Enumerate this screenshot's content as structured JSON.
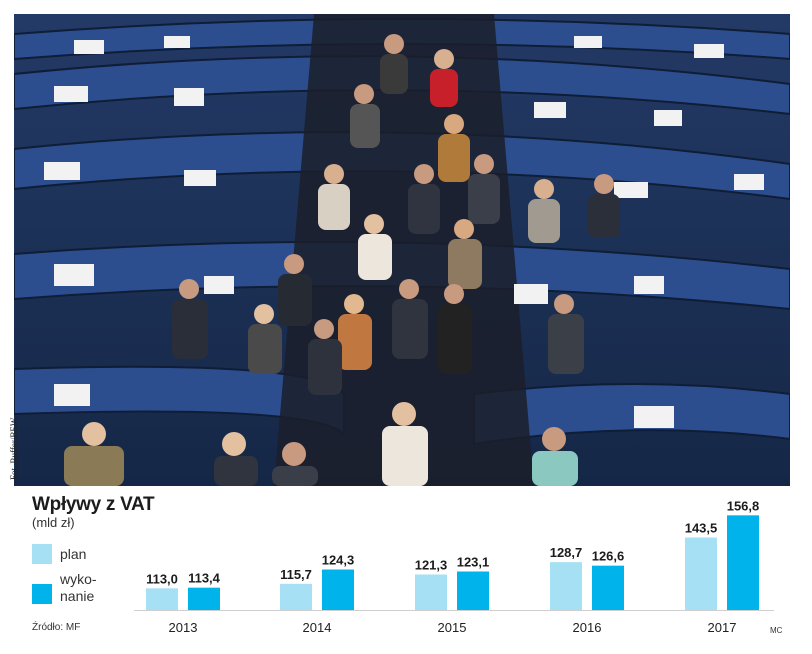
{
  "photo": {
    "credit": "Fot. Ruffer/BEW"
  },
  "chart_data": {
    "type": "bar",
    "title": "Wpływy z VAT",
    "unit": "(mld zł)",
    "categories": [
      "2013",
      "2014",
      "2015",
      "2016",
      "2017"
    ],
    "series": [
      {
        "name": "plan",
        "values": [
          113.0,
          115.7,
          121.3,
          128.7,
          143.5
        ],
        "color": "#a6e0f5"
      },
      {
        "name": "wykonanie",
        "values": [
          113.4,
          124.3,
          123.1,
          126.6,
          156.8
        ],
        "color": "#00b3ea"
      }
    ],
    "value_labels": {
      "plan": [
        "113,0",
        "115,7",
        "121,3",
        "128,7",
        "143,5"
      ],
      "wykonanie": [
        "113,4",
        "124,3",
        "123,1",
        "126,6",
        "156,8"
      ]
    },
    "legend": {
      "plan": "plan",
      "wykonanie_line1": "wyko-",
      "wykonanie_line2": "nanie"
    },
    "source": "Źródło: MF",
    "author": "MC",
    "grid": false,
    "legend_placement": "left"
  }
}
